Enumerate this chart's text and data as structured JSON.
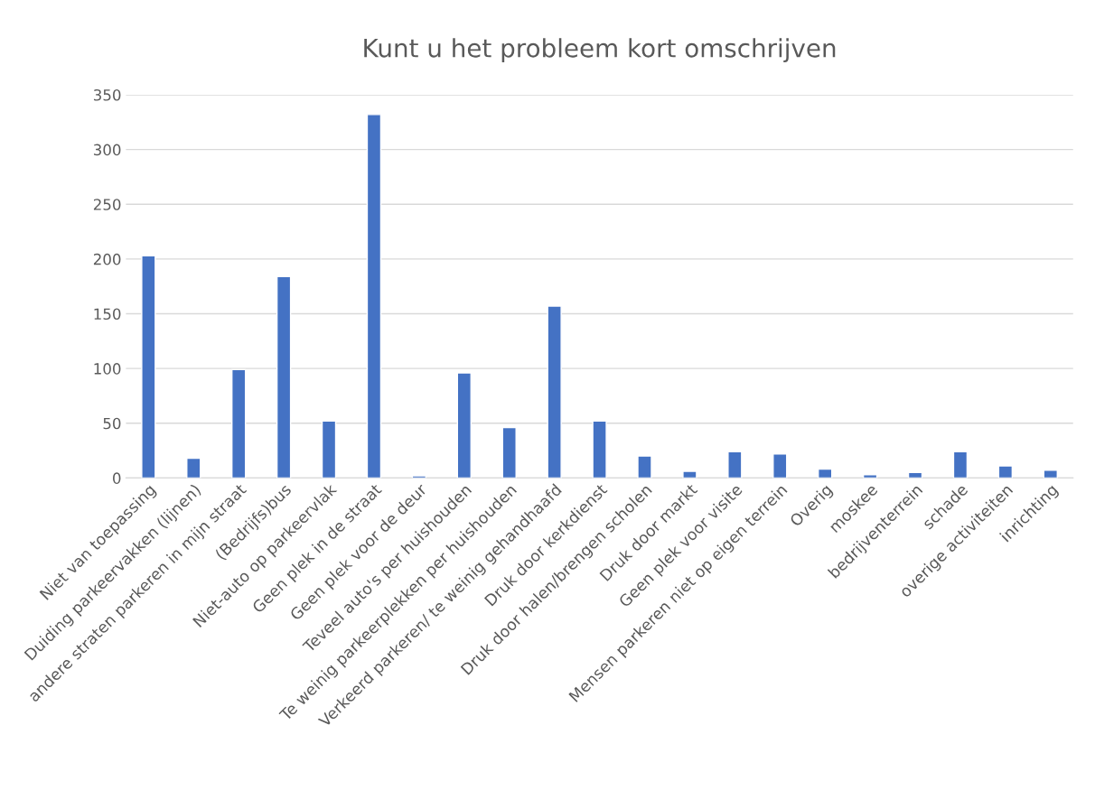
{
  "chart_data": {
    "type": "bar",
    "title": "Kunt u het probleem kort omschrijven",
    "categories": [
      "Niet van toepassing",
      "Duiding parkeervakken (lijnen)",
      "andere straten parkeren in mijn straat",
      "(Bedrijfs)bus",
      "Niet-auto op parkeervlak",
      "Geen plek in de straat",
      "Geen plek voor de deur",
      "Teveel auto's per huishouden",
      "Te weinig parkeerplekken per huishouden",
      "Verkeerd parkeren/ te weinig gehandhaafd",
      "Druk door kerkdienst",
      "Druk door halen/brengen scholen",
      "Druk door markt",
      "Geen plek voor visite",
      "Mensen parkeren niet op eigen terrein",
      "Overig",
      "moskee",
      "bedrijventerrein",
      "schade",
      "overige activiteiten",
      "inrichting"
    ],
    "values": [
      203,
      18,
      99,
      184,
      52,
      332,
      2,
      96,
      46,
      157,
      52,
      20,
      6,
      24,
      22,
      8,
      3,
      5,
      24,
      11,
      7
    ],
    "color": "#4472c4",
    "ylim": [
      0,
      350
    ],
    "yticks": [
      0,
      50,
      100,
      150,
      200,
      250,
      300,
      350
    ],
    "grid": "y",
    "legend": false
  }
}
